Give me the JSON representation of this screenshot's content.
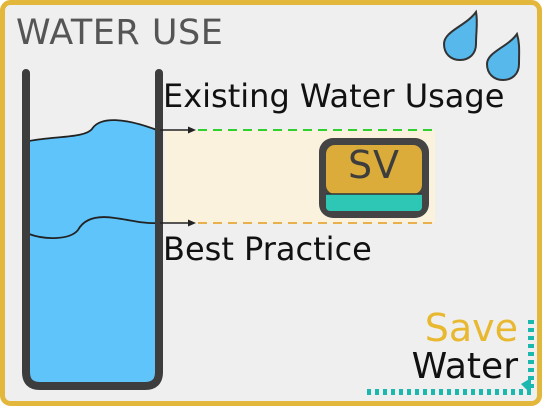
{
  "title": "WATER USE",
  "labels": {
    "existing": "Existing Water Usage",
    "best": "Best Practice"
  },
  "badge": {
    "text": "SV"
  },
  "logo": {
    "line1": "Save",
    "line2": "Water"
  },
  "colors": {
    "border": "#e2b73c",
    "background": "#efefef",
    "water": "#5ec4fa",
    "beaker": "#3d3d3d",
    "existing_line": "#2fd12f",
    "best_line": "#e8b14d",
    "band": "#faf2dd",
    "badge_top": "#dbac3a",
    "badge_bottom": "#2ec7b6",
    "drop": "#56b8eb",
    "logo_save": "#e8b831",
    "logo_dots": "#1bb8b0"
  },
  "icons": {
    "drops": "water-drops-icon"
  }
}
